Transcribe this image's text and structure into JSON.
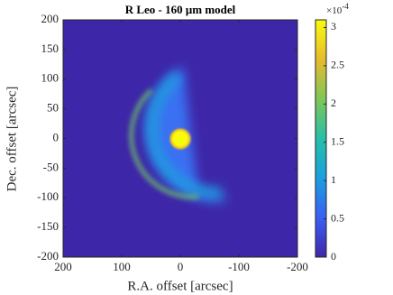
{
  "chart_data": {
    "type": "image",
    "title": "R Leo - 160 μm model",
    "xlabel": "R.A. offset [arcsec]",
    "ylabel": "Dec. offset [arcsec]",
    "xlim": [
      200,
      -200
    ],
    "xticks": [
      200,
      100,
      0,
      -100,
      -200
    ],
    "ylim": [
      -200,
      200
    ],
    "yticks": [
      -200,
      -150,
      -100,
      -50,
      0,
      50,
      100,
      150,
      200
    ],
    "clim": [
      0,
      3.1
    ],
    "cticks": [
      0,
      0.5,
      1,
      1.5,
      2,
      2.5,
      3
    ],
    "colorbar_scale_base": "×10",
    "colorbar_scale_exponent": "-4",
    "colormap": [
      "#3e26a8",
      "#3a5ff5",
      "#1aa0e0",
      "#26bfa8",
      "#80c756",
      "#e6bb2e",
      "#f9fb0e"
    ]
  }
}
